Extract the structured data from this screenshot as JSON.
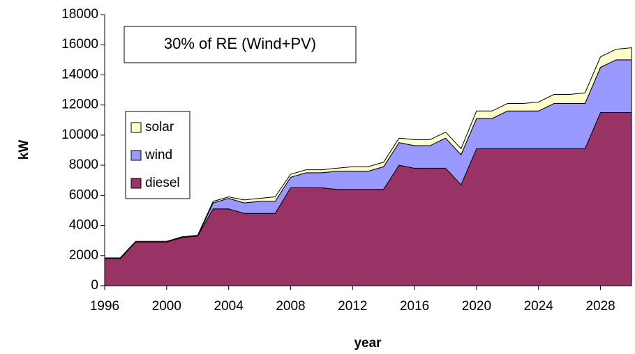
{
  "chart_data": {
    "type": "area",
    "annotation": "30% of RE (Wind+PV)",
    "x_label": "year",
    "y_label": "kW",
    "x": [
      1996,
      1997,
      1998,
      1999,
      2000,
      2001,
      2002,
      2003,
      2004,
      2005,
      2006,
      2007,
      2008,
      2009,
      2010,
      2011,
      2012,
      2013,
      2014,
      2015,
      2016,
      2017,
      2018,
      2019,
      2020,
      2021,
      2022,
      2023,
      2024,
      2025,
      2026,
      2027,
      2028,
      2029,
      2030
    ],
    "series": [
      {
        "name": "diesel",
        "color": "#993366",
        "values": [
          1800,
          1800,
          2900,
          2900,
          2900,
          3200,
          3300,
          5100,
          5100,
          4800,
          4800,
          4800,
          6500,
          6500,
          6500,
          6400,
          6400,
          6400,
          6400,
          8000,
          7800,
          7800,
          7800,
          6700,
          9100,
          9100,
          9100,
          9100,
          9100,
          9100,
          9100,
          9100,
          11500,
          11500,
          11500
        ]
      },
      {
        "name": "wind",
        "color": "#9999ff",
        "values": [
          0,
          0,
          0,
          0,
          0,
          0,
          0,
          400,
          700,
          700,
          800,
          800,
          700,
          1000,
          1000,
          1200,
          1200,
          1200,
          1500,
          1500,
          1500,
          1500,
          2000,
          2000,
          2000,
          2000,
          2500,
          2500,
          2500,
          3000,
          3000,
          3000,
          3000,
          3500,
          3500
        ]
      },
      {
        "name": "solar",
        "color": "#ffffcc",
        "values": [
          50,
          50,
          50,
          50,
          50,
          50,
          50,
          100,
          100,
          200,
          200,
          300,
          200,
          200,
          200,
          200,
          300,
          300,
          300,
          300,
          400,
          400,
          400,
          400,
          500,
          500,
          500,
          500,
          600,
          600,
          600,
          700,
          700,
          700,
          800
        ]
      }
    ],
    "stacked": true,
    "xlim": [
      1996,
      2030
    ],
    "xticks": [
      1996,
      2000,
      2004,
      2008,
      2012,
      2016,
      2020,
      2024,
      2028
    ],
    "ylim": [
      0,
      18000
    ],
    "yticks": [
      0,
      2000,
      4000,
      6000,
      8000,
      10000,
      12000,
      14000,
      16000,
      18000
    ],
    "grid": false,
    "legend": "left"
  }
}
